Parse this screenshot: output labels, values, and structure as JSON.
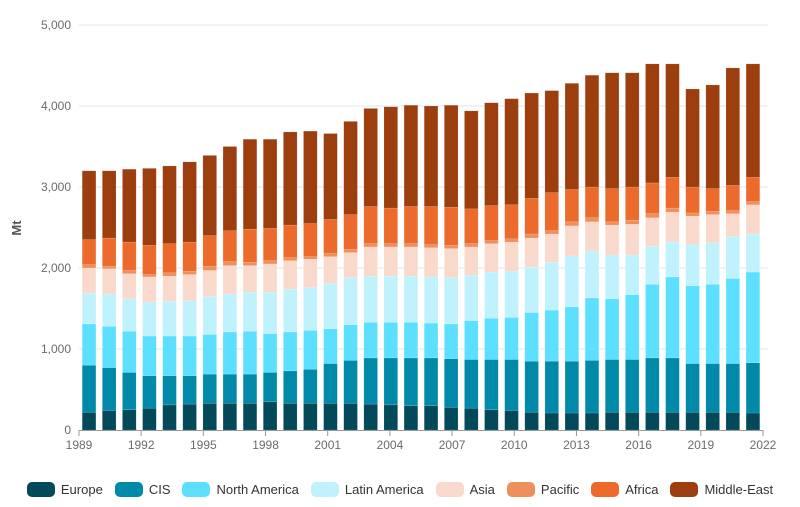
{
  "chart_data": {
    "type": "bar",
    "stacked": true,
    "title": "",
    "xlabel": "",
    "ylabel": "Mt",
    "ylim": [
      0,
      5000
    ],
    "yticks": [
      0,
      1000,
      2000,
      3000,
      4000,
      5000
    ],
    "ytick_labels": [
      "0",
      "1,000",
      "2,000",
      "3,000",
      "4,000",
      "5,000"
    ],
    "xtick_labels": [
      "1989",
      "1992",
      "1995",
      "1998",
      "2001",
      "2004",
      "2007",
      "2010",
      "2013",
      "2016",
      "2019",
      "2022"
    ],
    "grid": true,
    "legend_position": "bottom",
    "categories": [
      "1989",
      "1990",
      "1991",
      "1992",
      "1993",
      "1994",
      "1995",
      "1996",
      "1997",
      "1998",
      "1999",
      "2000",
      "2001",
      "2002",
      "2003",
      "2004",
      "2005",
      "2006",
      "2007",
      "2008",
      "2009",
      "2010",
      "2011",
      "2012",
      "2013",
      "2014",
      "2015",
      "2016",
      "2017",
      "2018",
      "2019",
      "2020",
      "2021",
      "2022"
    ],
    "series": [
      {
        "name": "Europe",
        "color": "#02495a",
        "values": [
          220,
          240,
          250,
          270,
          310,
          320,
          330,
          330,
          330,
          350,
          330,
          330,
          330,
          330,
          320,
          310,
          300,
          300,
          280,
          270,
          250,
          240,
          220,
          210,
          210,
          210,
          220,
          220,
          220,
          220,
          220,
          220,
          220,
          210
        ]
      },
      {
        "name": "CIS",
        "color": "#0189a9",
        "values": [
          580,
          530,
          460,
          400,
          360,
          350,
          360,
          360,
          360,
          360,
          400,
          420,
          490,
          530,
          570,
          580,
          590,
          590,
          600,
          600,
          620,
          630,
          630,
          640,
          640,
          650,
          650,
          650,
          670,
          670,
          600,
          600,
          600,
          620
        ]
      },
      {
        "name": "North America",
        "color": "#5de0ff",
        "values": [
          510,
          510,
          510,
          490,
          490,
          490,
          490,
          520,
          530,
          480,
          480,
          480,
          430,
          440,
          440,
          440,
          440,
          430,
          430,
          480,
          510,
          520,
          600,
          630,
          670,
          770,
          750,
          800,
          910,
          1000,
          960,
          980,
          1050,
          1120
        ]
      },
      {
        "name": "Latin America",
        "color": "#bff2fd",
        "values": [
          380,
          400,
          400,
          420,
          430,
          440,
          470,
          470,
          480,
          510,
          530,
          530,
          560,
          580,
          570,
          570,
          570,
          570,
          570,
          560,
          570,
          570,
          560,
          590,
          630,
          580,
          540,
          490,
          470,
          430,
          510,
          510,
          520,
          470
        ]
      },
      {
        "name": "Asia",
        "color": "#f9d9cb",
        "values": [
          310,
          310,
          310,
          310,
          310,
          320,
          320,
          350,
          330,
          350,
          350,
          350,
          330,
          310,
          360,
          360,
          360,
          360,
          360,
          350,
          350,
          360,
          360,
          350,
          370,
          360,
          370,
          380,
          350,
          370,
          350,
          350,
          280,
          360
        ]
      },
      {
        "name": "Pacific",
        "color": "#f08f5e",
        "values": [
          40,
          30,
          40,
          30,
          40,
          40,
          50,
          50,
          40,
          40,
          40,
          30,
          40,
          40,
          40,
          40,
          40,
          40,
          40,
          40,
          40,
          40,
          50,
          40,
          50,
          50,
          40,
          50,
          50,
          50,
          40,
          40,
          40,
          40
        ]
      },
      {
        "name": "Africa",
        "color": "#ec6a2c",
        "values": [
          310,
          350,
          350,
          360,
          360,
          360,
          380,
          380,
          410,
          400,
          400,
          410,
          420,
          430,
          460,
          440,
          460,
          470,
          470,
          430,
          430,
          420,
          440,
          470,
          400,
          380,
          410,
          410,
          380,
          380,
          320,
          280,
          310,
          300
        ]
      },
      {
        "name": "Middle-East",
        "color": "#9d3e0e",
        "values": [
          850,
          830,
          900,
          950,
          960,
          990,
          990,
          1040,
          1110,
          1100,
          1150,
          1140,
          1060,
          1150,
          1210,
          1250,
          1250,
          1240,
          1260,
          1210,
          1270,
          1310,
          1300,
          1260,
          1310,
          1380,
          1430,
          1410,
          1470,
          1400,
          1210,
          1280,
          1450,
          1400
        ]
      }
    ]
  }
}
